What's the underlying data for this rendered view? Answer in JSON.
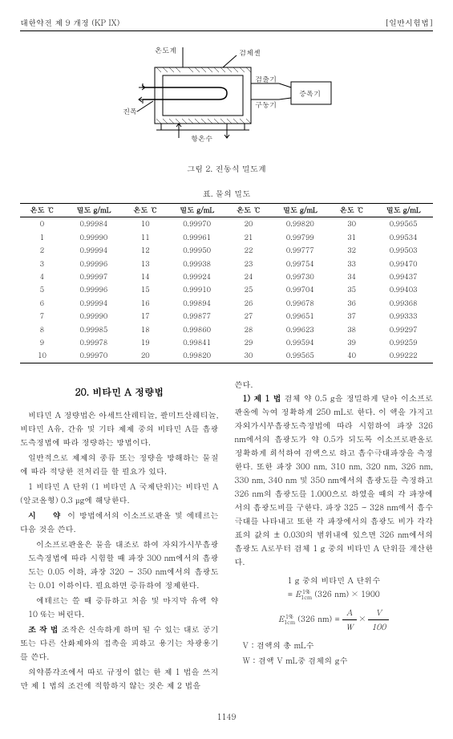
{
  "header": {
    "left": "대한약전 제 9 개정 (KP IX)",
    "right": "[일반시험법]"
  },
  "diagram": {
    "labels": {
      "thermometer": "온도계",
      "sample_cell": "검체셀",
      "detector": "검출기",
      "driver": "구동기",
      "amplifier": "증폭기",
      "vibrator": "진폭",
      "cooling_water": "항온수"
    },
    "caption": "그림 2. 진동식 밀도계"
  },
  "table": {
    "title": "표. 물의 밀도",
    "headers": [
      "온도 ℃",
      "밀도 g/mL",
      "온도 ℃",
      "밀도 g/mL",
      "온도 ℃",
      "밀도 g/mL",
      "온도 ℃",
      "밀도 g/mL"
    ],
    "rows": [
      [
        "0",
        "0.99984",
        "10",
        "0.99970",
        "20",
        "0.99820",
        "30",
        "0.99565"
      ],
      [
        "1",
        "0.99990",
        "11",
        "0.99961",
        "21",
        "0.99799",
        "31",
        "0.99534"
      ],
      [
        "2",
        "0.99994",
        "12",
        "0.99950",
        "22",
        "0.99777",
        "32",
        "0.99503"
      ],
      [
        "3",
        "0.99996",
        "13",
        "0.99938",
        "23",
        "0.99754",
        "33",
        "0.99470"
      ],
      [
        "4",
        "0.99997",
        "14",
        "0.99924",
        "24",
        "0.99730",
        "34",
        "0.99437"
      ],
      [
        "5",
        "0.99996",
        "15",
        "0.99910",
        "25",
        "0.99704",
        "35",
        "0.99403"
      ],
      [
        "6",
        "0.99994",
        "16",
        "0.99894",
        "26",
        "0.99678",
        "36",
        "0.99368"
      ],
      [
        "7",
        "0.99990",
        "17",
        "0.99877",
        "27",
        "0.99651",
        "37",
        "0.99333"
      ],
      [
        "8",
        "0.99985",
        "18",
        "0.99860",
        "28",
        "0.99623",
        "38",
        "0.99297"
      ],
      [
        "9",
        "0.99978",
        "19",
        "0.99841",
        "29",
        "0.99594",
        "39",
        "0.99259"
      ],
      [
        "10",
        "0.99970",
        "20",
        "0.99820",
        "30",
        "0.99565",
        "40",
        "0.99222"
      ]
    ]
  },
  "left_col": {
    "title": "20. 비타민 A 정량법",
    "p1": "비타민 A 정량법은 아세트산레티놀, 팔미트산레티놀, 비타민 A유, 간유 및 기타 제제 중의 비타민 A를 흡광도측정법에 따라 정량하는 방법이다.",
    "p2": "일반적으로 제제의 종류 또는 정량을 방해하는 물질에 따라 적당한 전처리를 할 필요가 있다.",
    "p3": "1 비타민 A 단위 (1 비타민 A 국제단위)는 비타민 A (알코올형) 0.3 μg에 해당한다.",
    "reagent_label": "시　약",
    "reagent_text": "이 방법에서의 이소프로판올 및 에테르는 다음 것을 쓴다.",
    "reagent_1": "이소프로판올은 물을 대조로 하여 자외가시부흡광도측정법에 따라 시험할 때 파장 300 nm에서의 흡광도는 0.05 이하, 파장 320 ~ 350 nm에서의 흡광도는 0.01 이하이다. 필요하면 증류하여 정제한다.",
    "reagent_2": "에테르는 쓸 때 증류하고 처음 및 마지막 유액 약 10 %는 버린다.",
    "procedure_label": "조 작 법",
    "procedure_text": "조작은 신속하게 하며 될 수 있는 대로 공기 또는 다른 산화제와의 접촉을 피하고 용기는 차광용기를 쓴다.",
    "procedure_2": "의약품각조에서 따로 규정이 없는 한 제 1 법을 쓰지만 제 1 법의 조건에 적합하지 않는 것은 제 2 법을"
  },
  "right_col": {
    "p_continue": "쓴다.",
    "method1_label": "1) 제 1 법",
    "method1_text": " 검체 약 0.5 g을 정밀하게 달아 이소프로판올에 녹여 정확하게 250 mL로 한다. 이 액을 가지고 자외가시부흡광도측정법에 따라 시험하여 파장 326 nm에서의 흡광도가 약 0.5가 되도록 이소프로판올로 정확하게 희석하여 검액으로 하고 흡수극대파장을 측정한다. 또한 파장 300 nm, 310 nm, 320 nm, 326 nm, 330 nm, 340 nm 및 350 nm에서의 흡광도를 측정하고 326 nm의 흡광도를 1.000으로 하였을 때의 각 파장에서의 흡광도비를 구한다. 파장 325 ~ 328 nm에서 흡수극대를 나타내고 또한 각 파장에서의 흡광도 비가 각각 표의 값의 ± 0.030의 범위내에 있으면 326 nm에서의 흡광도 A로부터 검체 1 g 중의 비타민 A 단위를 계산한다.",
    "formula1_label": "1 g 중의 비타민 A 단위수",
    "formula2_lhs": "E",
    "formula2_sub": "1cm",
    "formula2_sup": "1%",
    "formula2_paren": "(326 nm)",
    "var_V": "V : 검액의 총 mL수",
    "var_W": "W : 검액 V mL중 검체의 g수"
  },
  "page_number": "1149"
}
